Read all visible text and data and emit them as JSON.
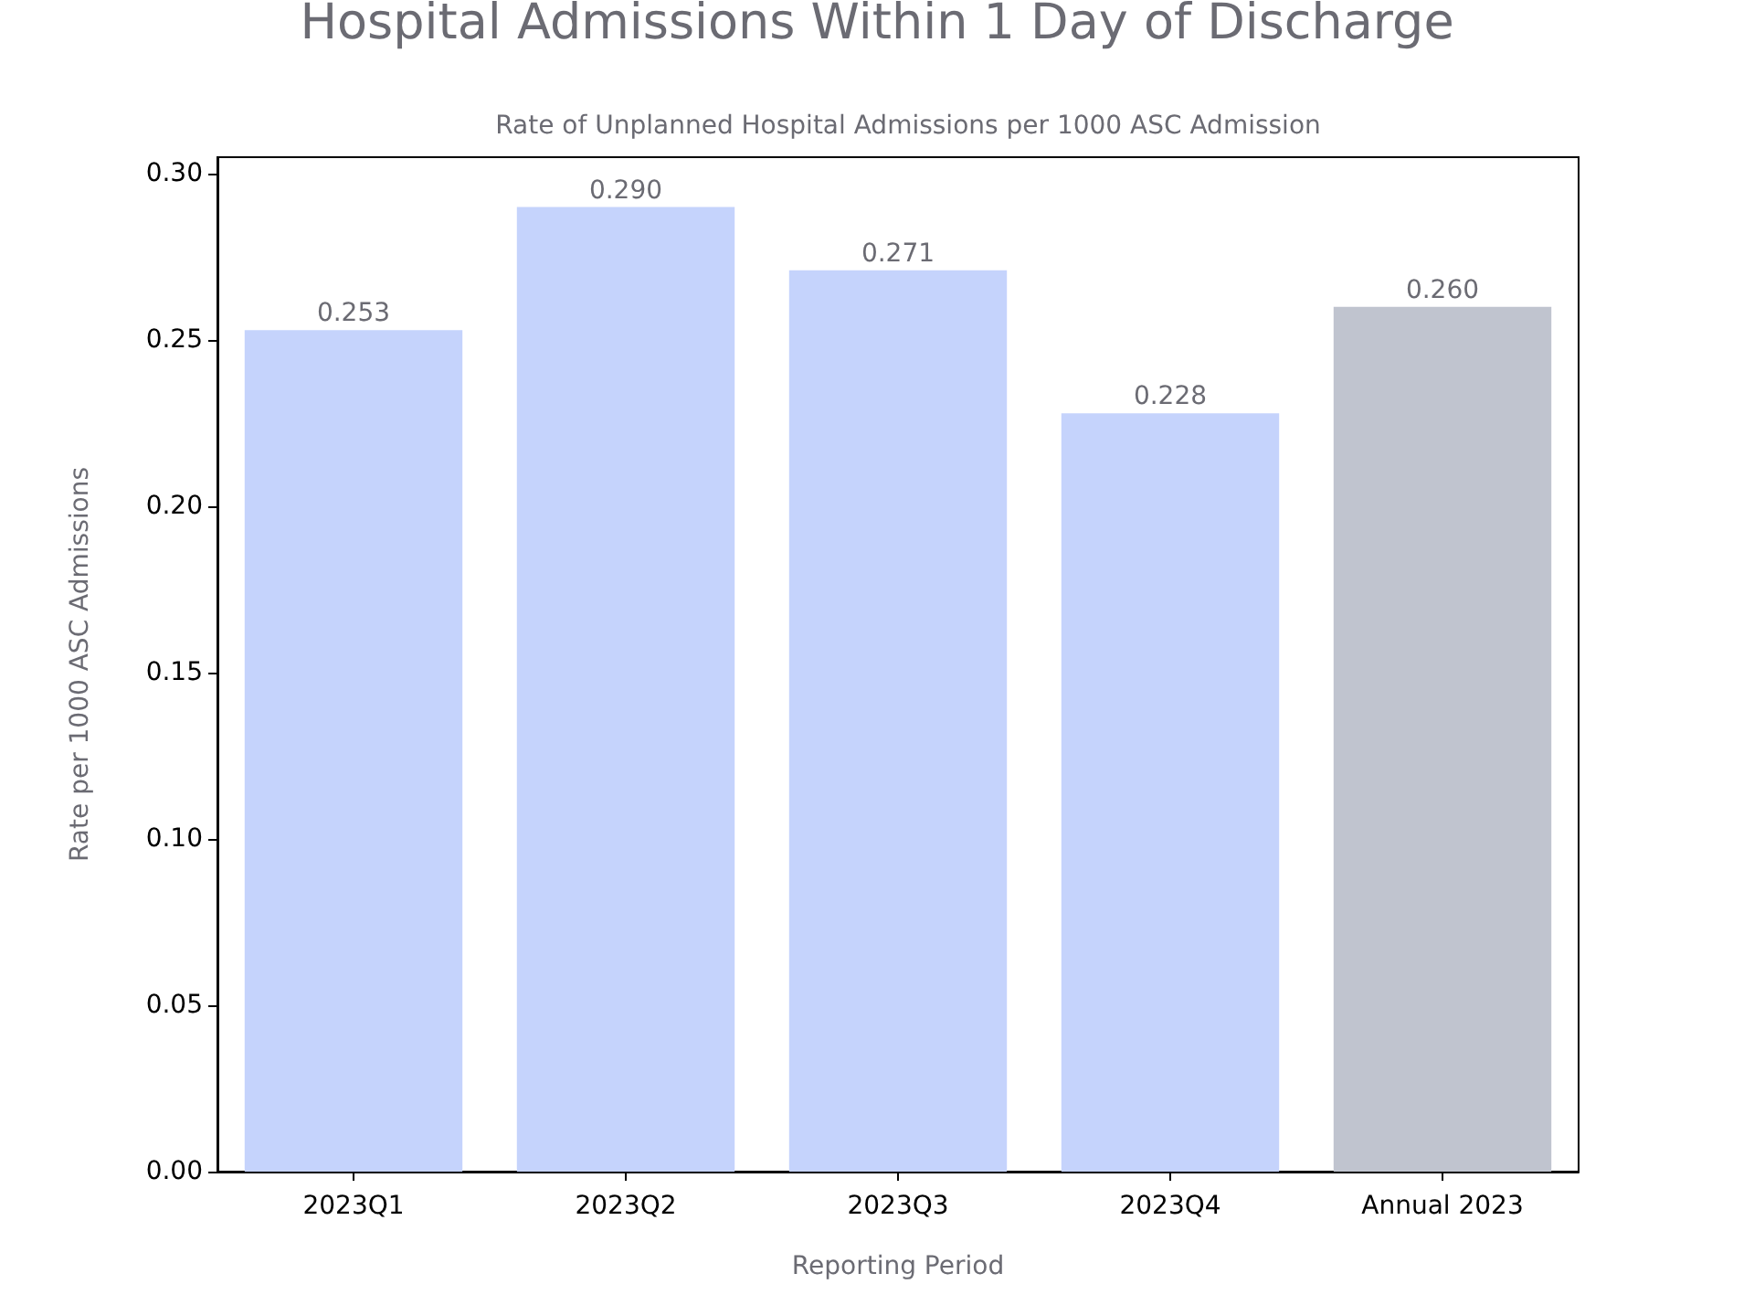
{
  "chart_data": {
    "type": "bar",
    "title": "Hospital Admissions Within 1 Day of Discharge",
    "subtitle": "Rate of Unplanned Hospital Admissions per 1000 ASC Admission",
    "xlabel": "Reporting Period",
    "ylabel": "Rate per 1000 ASC Admissions",
    "categories": [
      "2023Q1",
      "2023Q2",
      "2023Q3",
      "2023Q4",
      "Annual 2023"
    ],
    "values": [
      0.253,
      0.29,
      0.271,
      0.228,
      0.26
    ],
    "value_labels": [
      "0.253",
      "0.290",
      "0.271",
      "0.228",
      "0.260"
    ],
    "colors": [
      "#c5d3fc",
      "#c5d3fc",
      "#c5d3fc",
      "#c5d3fc",
      "#c0c4cf"
    ],
    "ylim": [
      0,
      0.305
    ],
    "yticks": [
      {
        "value": 0,
        "label": "0.00"
      },
      {
        "value": 0.05,
        "label": "0.05"
      },
      {
        "value": 0.1,
        "label": "0.10"
      },
      {
        "value": 0.15,
        "label": "0.15"
      },
      {
        "value": 0.2,
        "label": "0.20"
      },
      {
        "value": 0.25,
        "label": "0.25"
      },
      {
        "value": 0.3,
        "label": "0.30"
      }
    ],
    "grid": false
  }
}
